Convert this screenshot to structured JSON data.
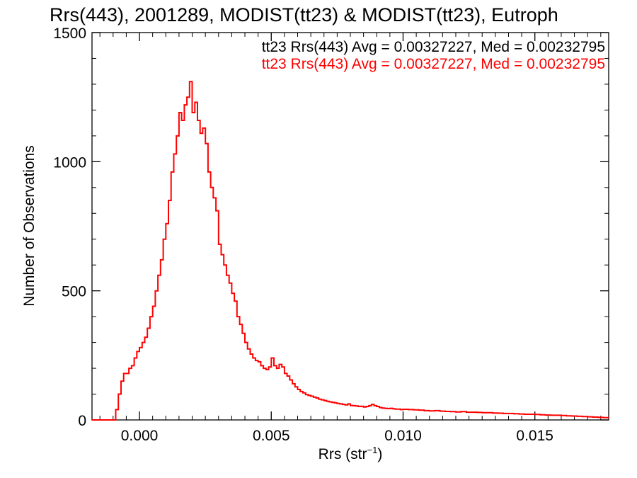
{
  "chart_data": {
    "type": "line",
    "title": "Rrs(443), 2001289, MODIST(tt23) & MODIST(tt23), Eutroph",
    "xlabel": {
      "base": "Rrs (str",
      "sup": "−1",
      "close": ")"
    },
    "ylabel": "Number of Observations",
    "xlim": [
      -0.0018,
      0.0178
    ],
    "ylim": [
      0,
      1500
    ],
    "xticks": [
      0.0,
      0.005,
      0.01,
      0.015
    ],
    "xtick_labels": [
      "0.000",
      "0.005",
      "0.010",
      "0.015"
    ],
    "yticks": [
      0,
      500,
      1000,
      1500
    ],
    "ytick_labels": [
      "0",
      "500",
      "1000",
      "1500"
    ],
    "grid": false,
    "legend_position": "top-right",
    "legend": [
      {
        "text": "tt23 Rrs(443) Avg = 0.00327227, Med = 0.00232795",
        "color": "#000000"
      },
      {
        "text": "tt23 Rrs(443) Avg = 0.00327227, Med = 0.00232795",
        "color": "#ff0000"
      }
    ],
    "series": [
      {
        "color": "#ff0000",
        "step": "histogram",
        "points": [
          [
            -0.0018,
            0
          ],
          [
            -0.001,
            0
          ],
          [
            -0.0009,
            40
          ],
          [
            -0.0008,
            100
          ],
          [
            -0.0007,
            150
          ],
          [
            -0.0006,
            180
          ],
          [
            -0.0005,
            180
          ],
          [
            -0.0004,
            200
          ],
          [
            -0.0003,
            210
          ],
          [
            -0.0002,
            240
          ],
          [
            -0.0001,
            265
          ],
          [
            0.0,
            280
          ],
          [
            0.0001,
            300
          ],
          [
            0.0002,
            320
          ],
          [
            0.0003,
            355
          ],
          [
            0.0004,
            400
          ],
          [
            0.0005,
            440
          ],
          [
            0.0006,
            500
          ],
          [
            0.0007,
            560
          ],
          [
            0.0008,
            620
          ],
          [
            0.0009,
            700
          ],
          [
            0.001,
            760
          ],
          [
            0.0011,
            850
          ],
          [
            0.0012,
            960
          ],
          [
            0.0013,
            1030
          ],
          [
            0.0014,
            1100
          ],
          [
            0.0015,
            1190
          ],
          [
            0.0016,
            1160
          ],
          [
            0.0017,
            1220
          ],
          [
            0.0018,
            1250
          ],
          [
            0.0019,
            1310
          ],
          [
            0.002,
            1190
          ],
          [
            0.0021,
            1230
          ],
          [
            0.0022,
            1160
          ],
          [
            0.0023,
            1110
          ],
          [
            0.0024,
            1130
          ],
          [
            0.0025,
            1070
          ],
          [
            0.0026,
            960
          ],
          [
            0.0027,
            900
          ],
          [
            0.0028,
            860
          ],
          [
            0.0029,
            810
          ],
          [
            0.003,
            680
          ],
          [
            0.0031,
            640
          ],
          [
            0.0032,
            600
          ],
          [
            0.0033,
            560
          ],
          [
            0.0034,
            530
          ],
          [
            0.0035,
            490
          ],
          [
            0.0036,
            460
          ],
          [
            0.0037,
            400
          ],
          [
            0.0038,
            370
          ],
          [
            0.0039,
            335
          ],
          [
            0.004,
            300
          ],
          [
            0.0041,
            275
          ],
          [
            0.0042,
            255
          ],
          [
            0.0043,
            240
          ],
          [
            0.0044,
            230
          ],
          [
            0.0045,
            225
          ],
          [
            0.0046,
            210
          ],
          [
            0.0047,
            200
          ],
          [
            0.0048,
            195
          ],
          [
            0.0049,
            205
          ],
          [
            0.005,
            240
          ],
          [
            0.0051,
            210
          ],
          [
            0.0052,
            200
          ],
          [
            0.0053,
            215
          ],
          [
            0.0054,
            205
          ],
          [
            0.0055,
            180
          ],
          [
            0.0056,
            170
          ],
          [
            0.0057,
            155
          ],
          [
            0.0058,
            140
          ],
          [
            0.0059,
            128
          ],
          [
            0.006,
            118
          ],
          [
            0.0061,
            110
          ],
          [
            0.0062,
            105
          ],
          [
            0.0063,
            98
          ],
          [
            0.0064,
            95
          ],
          [
            0.0065,
            92
          ],
          [
            0.0066,
            88
          ],
          [
            0.0067,
            85
          ],
          [
            0.0068,
            80
          ],
          [
            0.0069,
            78
          ],
          [
            0.007,
            75
          ],
          [
            0.0071,
            72
          ],
          [
            0.0072,
            70
          ],
          [
            0.0073,
            68
          ],
          [
            0.0074,
            66
          ],
          [
            0.0075,
            64
          ],
          [
            0.0076,
            62
          ],
          [
            0.0077,
            60
          ],
          [
            0.0078,
            58
          ],
          [
            0.0079,
            62
          ],
          [
            0.008,
            56
          ],
          [
            0.0081,
            55
          ],
          [
            0.0082,
            54
          ],
          [
            0.0083,
            52
          ],
          [
            0.0084,
            53
          ],
          [
            0.0085,
            50
          ],
          [
            0.0086,
            52
          ],
          [
            0.0087,
            55
          ],
          [
            0.0088,
            60
          ],
          [
            0.0089,
            55
          ],
          [
            0.009,
            52
          ],
          [
            0.0091,
            48
          ],
          [
            0.0092,
            46
          ],
          [
            0.0093,
            45
          ],
          [
            0.0094,
            44
          ],
          [
            0.0095,
            45
          ],
          [
            0.0096,
            43
          ],
          [
            0.0097,
            42
          ],
          [
            0.0098,
            42
          ],
          [
            0.0099,
            40
          ],
          [
            0.01,
            41
          ],
          [
            0.0102,
            40
          ],
          [
            0.0104,
            39
          ],
          [
            0.0106,
            38
          ],
          [
            0.0108,
            36
          ],
          [
            0.011,
            35
          ],
          [
            0.0112,
            36
          ],
          [
            0.0114,
            34
          ],
          [
            0.0116,
            33
          ],
          [
            0.0118,
            32
          ],
          [
            0.012,
            31
          ],
          [
            0.0122,
            32
          ],
          [
            0.0124,
            30
          ],
          [
            0.0126,
            30
          ],
          [
            0.0128,
            29
          ],
          [
            0.013,
            28
          ],
          [
            0.0132,
            28
          ],
          [
            0.0134,
            27
          ],
          [
            0.0136,
            26
          ],
          [
            0.0138,
            25
          ],
          [
            0.014,
            25
          ],
          [
            0.0142,
            24
          ],
          [
            0.0144,
            23
          ],
          [
            0.0146,
            22
          ],
          [
            0.0148,
            22
          ],
          [
            0.015,
            21
          ],
          [
            0.0152,
            20
          ],
          [
            0.0154,
            19
          ],
          [
            0.0156,
            18
          ],
          [
            0.0158,
            18
          ],
          [
            0.016,
            17
          ],
          [
            0.0162,
            16
          ],
          [
            0.0164,
            15
          ],
          [
            0.0166,
            14
          ],
          [
            0.0168,
            13
          ],
          [
            0.017,
            12
          ],
          [
            0.0172,
            11
          ],
          [
            0.0174,
            10
          ],
          [
            0.0176,
            9
          ],
          [
            0.0178,
            9
          ]
        ]
      }
    ]
  }
}
